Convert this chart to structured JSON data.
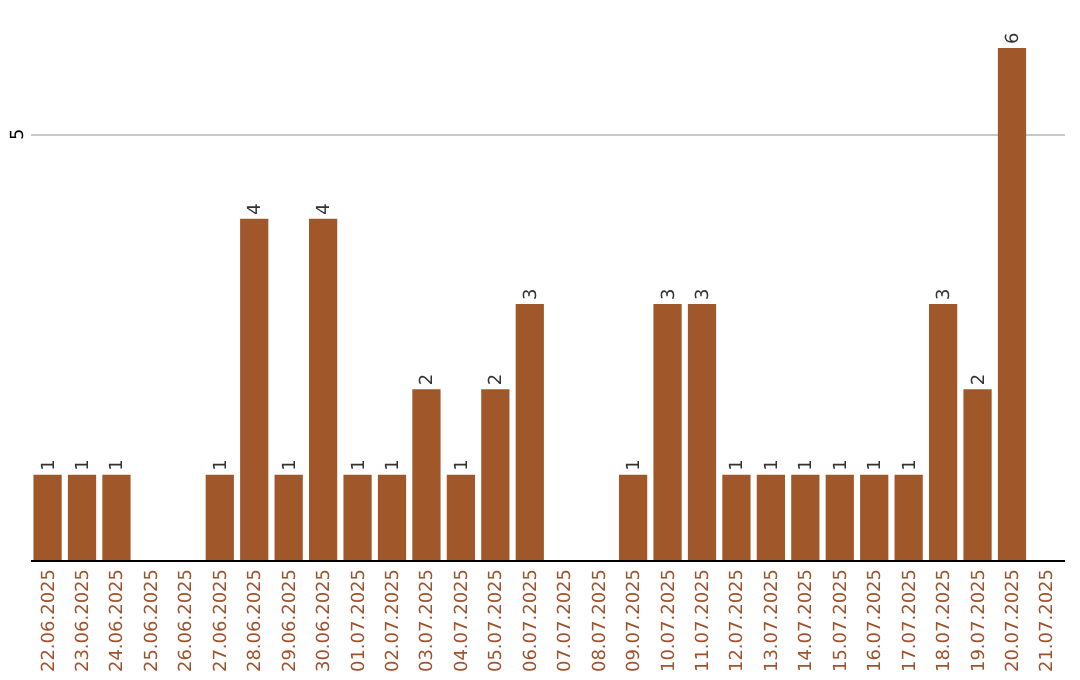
{
  "chart_data": {
    "type": "bar",
    "categories": [
      "22.06.2025",
      "23.06.2025",
      "24.06.2025",
      "25.06.2025",
      "26.06.2025",
      "27.06.2025",
      "28.06.2025",
      "29.06.2025",
      "30.06.2025",
      "01.07.2025",
      "02.07.2025",
      "03.07.2025",
      "04.07.2025",
      "05.07.2025",
      "06.07.2025",
      "07.07.2025",
      "08.07.2025",
      "09.07.2025",
      "10.07.2025",
      "11.07.2025",
      "12.07.2025",
      "13.07.2025",
      "14.07.2025",
      "15.07.2025",
      "16.07.2025",
      "17.07.2025",
      "18.07.2025",
      "19.07.2025",
      "20.07.2025",
      "21.07.2025"
    ],
    "values": [
      1,
      1,
      1,
      null,
      null,
      1,
      4,
      1,
      4,
      1,
      1,
      2,
      1,
      2,
      3,
      null,
      null,
      1,
      3,
      3,
      1,
      1,
      1,
      1,
      1,
      1,
      3,
      2,
      6,
      null
    ],
    "color": "#a0582a",
    "ylim": [
      0,
      6
    ],
    "yticks": [
      5
    ],
    "grid": "y",
    "data_labels": true
  }
}
